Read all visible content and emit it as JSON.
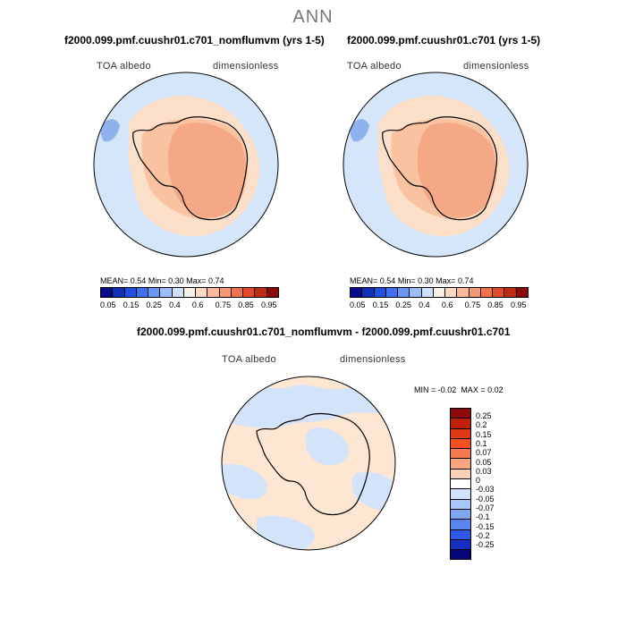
{
  "figure_title": "ANN",
  "panels": [
    {
      "title": "f2000.099.pmf.cuushr01.c701_nomflumvm (yrs 1-5)",
      "variable": "TOA albedo",
      "units": "dimensionless",
      "mean_label": "MEAN=",
      "mean": "0.54",
      "min_label": "Min=",
      "min": "0.30",
      "max_label": "Max=",
      "max": "0.74"
    },
    {
      "title": "f2000.099.pmf.cuushr01.c701 (yrs 1-5)",
      "variable": "TOA albedo",
      "units": "dimensionless",
      "mean_label": "MEAN=",
      "mean": "0.54",
      "min_label": "Min=",
      "min": "0.30",
      "max_label": "Max=",
      "max": "0.74"
    }
  ],
  "diff_panel": {
    "title": "f2000.099.pmf.cuushr01.c701_nomflumvm - f2000.099.pmf.cuushr01.c701",
    "variable": "TOA albedo",
    "units": "dimensionless",
    "min_label": "MIN =",
    "min": "-0.02",
    "max_label": "MAX =",
    "max": "0.02"
  },
  "colorbar": {
    "ticks": [
      "0.05",
      "0.15",
      "0.25",
      "0.4",
      "0.6",
      "0.75",
      "0.85",
      "0.95"
    ],
    "colors": [
      "#0a0a8c",
      "#1030b8",
      "#2050e0",
      "#4070f0",
      "#6a96f5",
      "#9abcf8",
      "#cfe0fa",
      "#f6f0e8",
      "#fcd9c2",
      "#fbb898",
      "#f79774",
      "#f2724c",
      "#e04a2a",
      "#bf2a12",
      "#8c0a0a"
    ]
  },
  "diff_colorbar": {
    "labels": [
      "0.25",
      "0.2",
      "0.15",
      "0.1",
      "0.07",
      "0.05",
      "0.03",
      "0",
      "-0.03",
      "-0.05",
      "-0.07",
      "-0.1",
      "-0.15",
      "-0.2",
      "-0.25"
    ],
    "colors": [
      "#8c0a0a",
      "#c0200a",
      "#e03a14",
      "#f45020",
      "#f57a4e",
      "#f8a57e",
      "#fcd0b6",
      "#ffffff",
      "#d0e2fb",
      "#a8c6f7",
      "#7ea6f2",
      "#5a85f0",
      "#2f5ae8",
      "#1530c0",
      "#06067a"
    ]
  },
  "map_colors": {
    "ocean": "#d5e6fb",
    "ice_edge": "#fcdfc8",
    "ice_mid": "#f9c3a2",
    "plateau": "#f5a886",
    "blue_patch": "#8fb1ee",
    "diff_pos": "#fde6d2",
    "diff_neg": "#d3e3f9"
  }
}
